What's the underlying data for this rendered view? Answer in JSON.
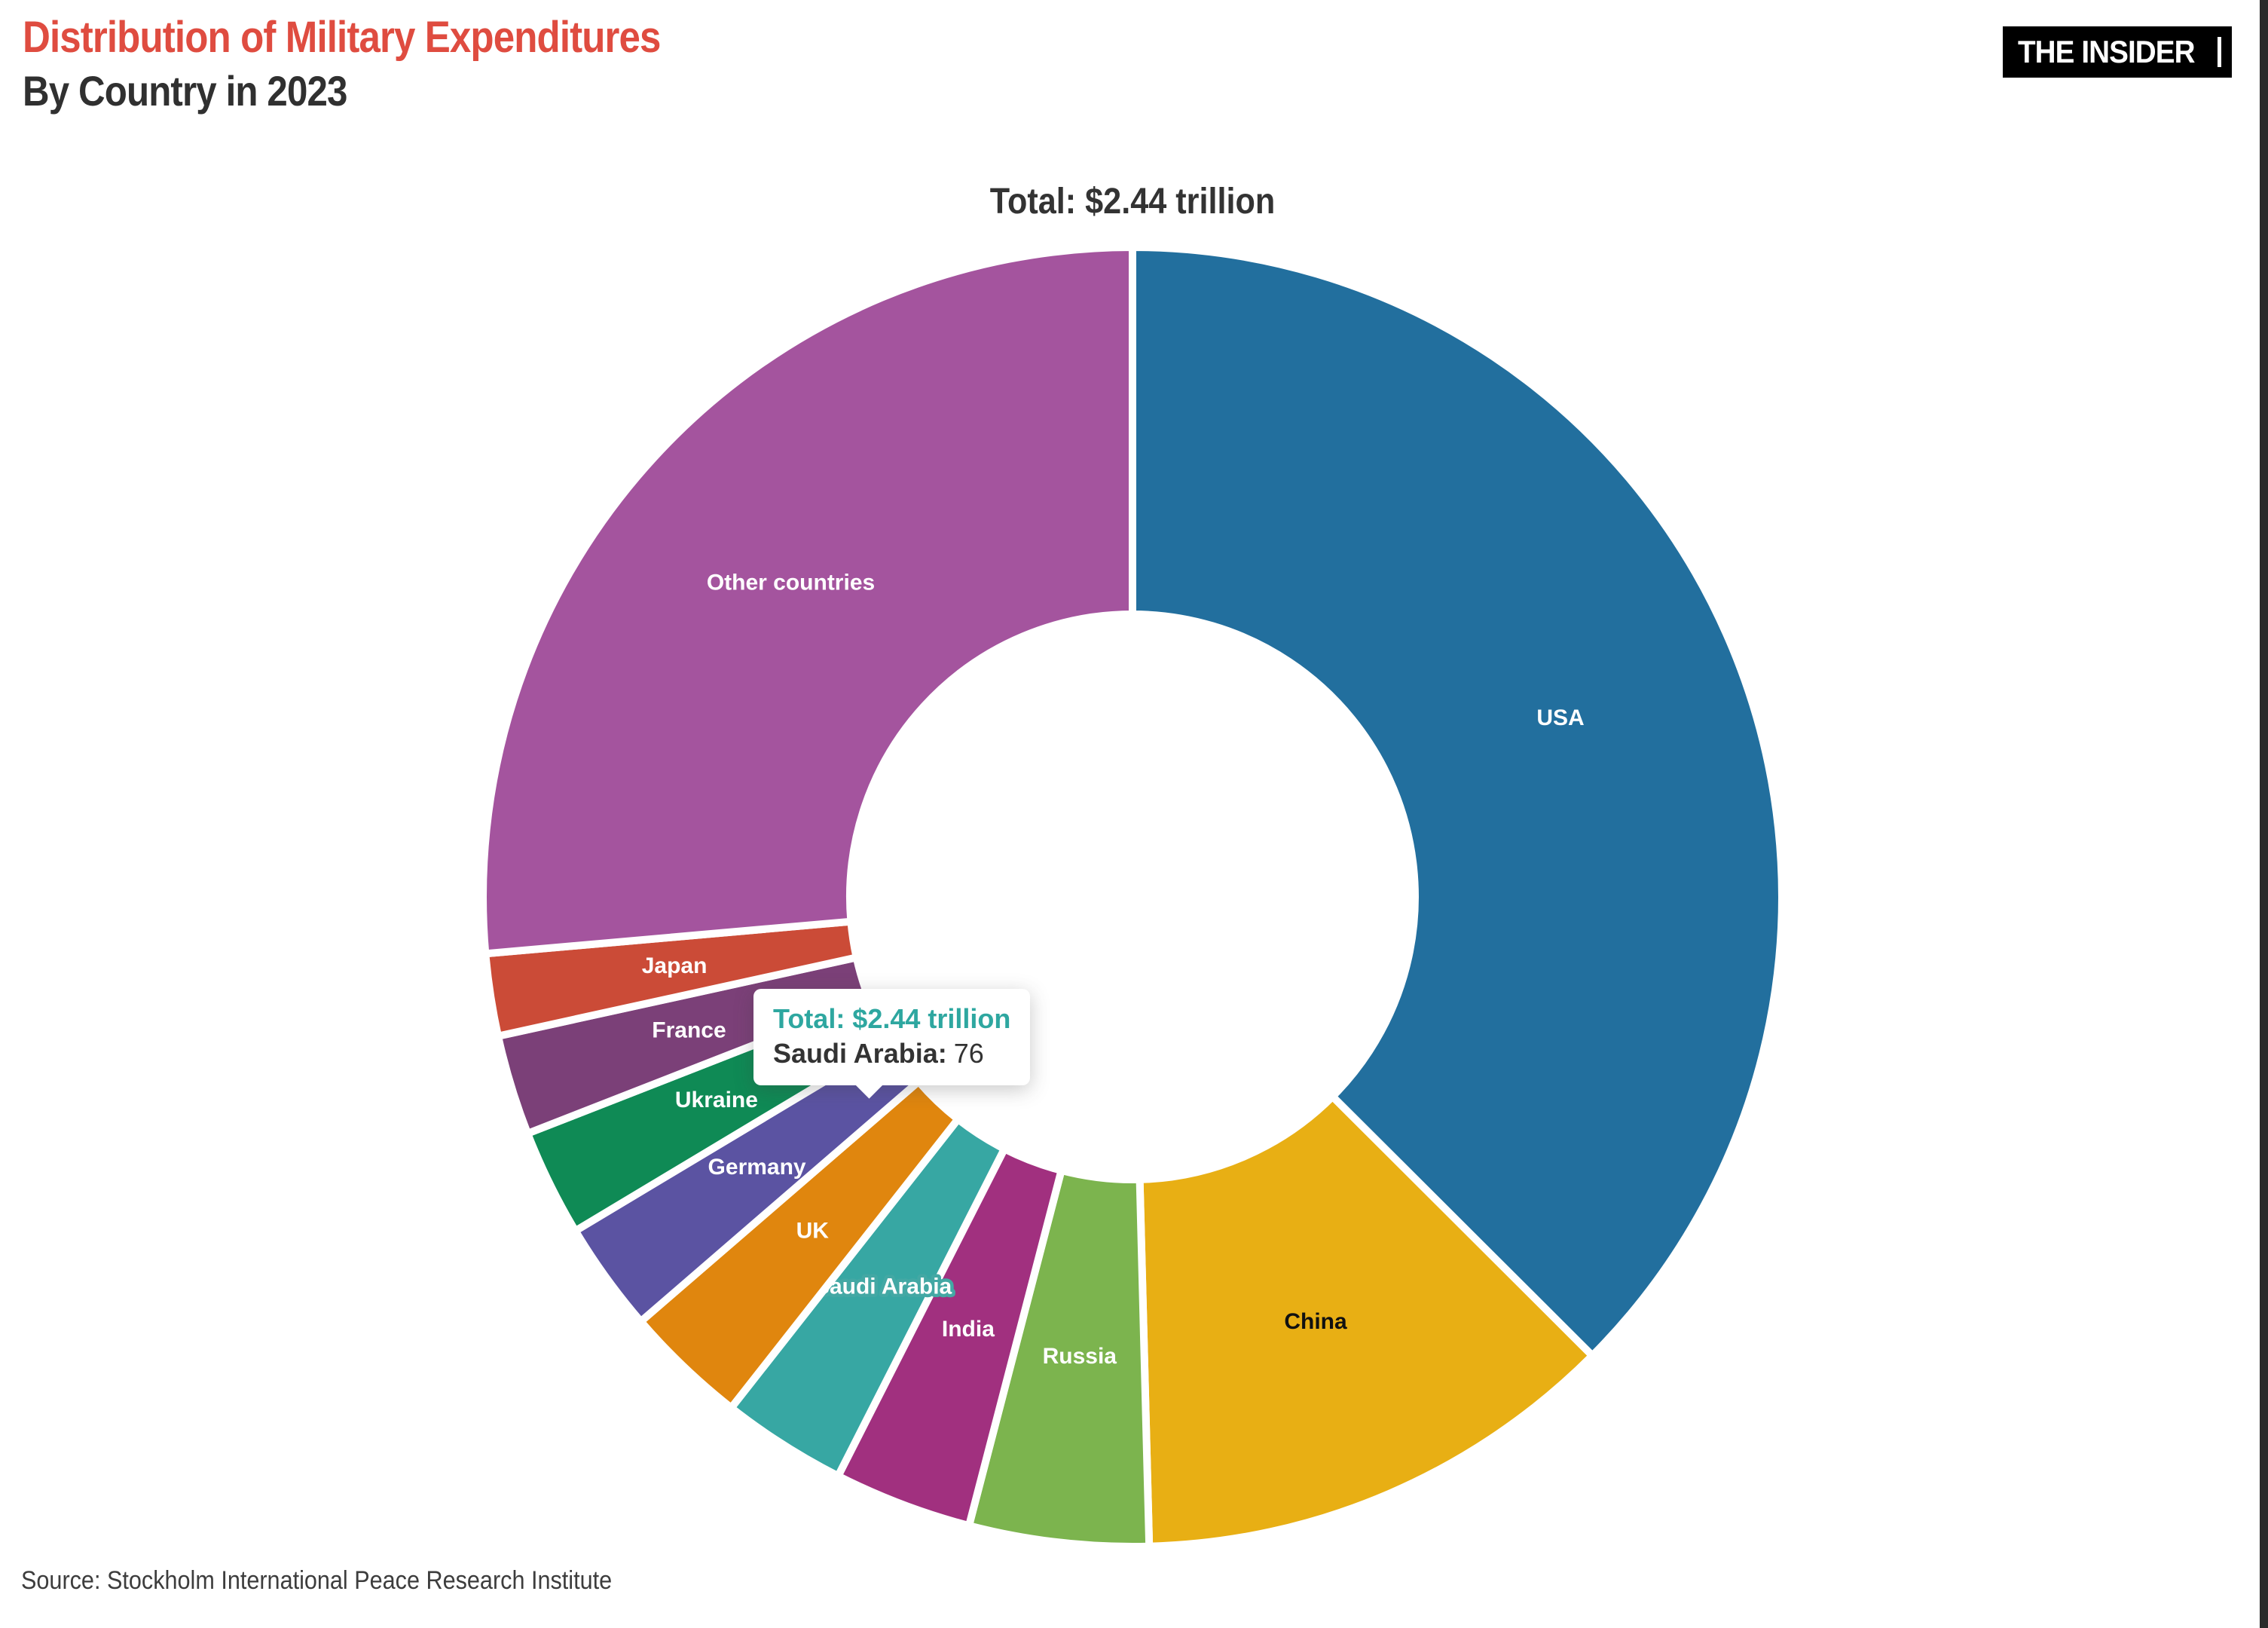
{
  "header": {
    "title": "Distribution of Military Expenditures",
    "subtitle": "By Country in 2023"
  },
  "brand": {
    "logo_text": "THE INSIDER"
  },
  "chart": {
    "total_heading": "Total: $2.44 trillion"
  },
  "tooltip": {
    "total_line": "Total: $2.44 trillion",
    "series_label": "Saudi Arabia:",
    "series_value": "76"
  },
  "source": {
    "text": "Source: Stockholm International Peace Research Institute"
  },
  "chart_data": {
    "type": "pie",
    "title": "Total: $2.44 trillion",
    "subtitle": "Distribution of Military Expenditures By Country in 2023",
    "donut": true,
    "legend_position": "none",
    "total": 2444,
    "total_displayed": "$2.44 trillion",
    "segments": [
      {
        "label": "USA",
        "value": 916,
        "color": "#226f9e",
        "label_color": "#ffffff"
      },
      {
        "label": "China",
        "value": 296,
        "color": "#e8af14",
        "label_color": "#111111"
      },
      {
        "label": "Russia",
        "value": 109,
        "color": "#7cb44e",
        "label_color": "#ffffff"
      },
      {
        "label": "India",
        "value": 84,
        "color": "#a1307f",
        "label_color": "#ffffff"
      },
      {
        "label": "Saudi Arabia",
        "value": 76,
        "color": "#37a7a3",
        "label_color": "#ffffff",
        "highlighted": true
      },
      {
        "label": "UK",
        "value": 75,
        "color": "#e0860e",
        "label_color": "#ffffff"
      },
      {
        "label": "Germany",
        "value": 67,
        "color": "#5b53a2",
        "label_color": "#ffffff"
      },
      {
        "label": "Ukraine",
        "value": 65,
        "color": "#0f8a55",
        "label_color": "#ffffff"
      },
      {
        "label": "France",
        "value": 61,
        "color": "#7b4078",
        "label_color": "#ffffff"
      },
      {
        "label": "Japan",
        "value": 50,
        "color": "#cb4b37",
        "label_color": "#ffffff"
      },
      {
        "label": "Other countries",
        "value": 645,
        "color": "#a4549e",
        "label_color": "#ffffff"
      }
    ],
    "highlight_halo_color": "#43a8a4"
  }
}
